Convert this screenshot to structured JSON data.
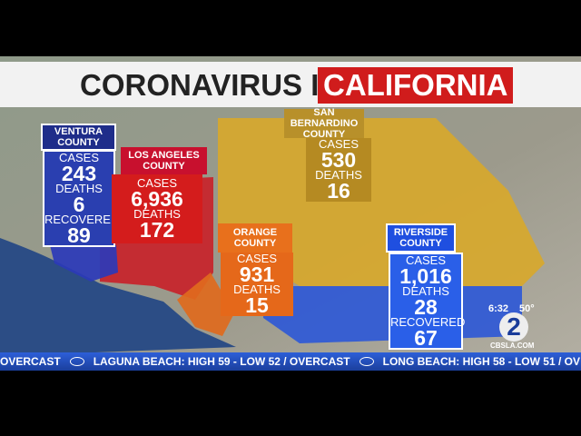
{
  "header": {
    "title": "CORONAVIRUS IN",
    "highlight": "CALIFORNIA"
  },
  "counties": [
    {
      "name": "VENTURA COUNTY",
      "stats": [
        {
          "label": "CASES",
          "value": "243"
        },
        {
          "label": "DEATHS",
          "value": "6"
        },
        {
          "label": "RECOVERED",
          "value": "89"
        }
      ]
    },
    {
      "name": "LOS ANGELES COUNTY",
      "stats": [
        {
          "label": "CASES",
          "value": "6,936"
        },
        {
          "label": "DEATHS",
          "value": "172"
        }
      ]
    },
    {
      "name": "SAN BERNARDINO COUNTY",
      "stats": [
        {
          "label": "CASES",
          "value": "530"
        },
        {
          "label": "DEATHS",
          "value": "16"
        }
      ]
    },
    {
      "name": "ORANGE COUNTY",
      "stats": [
        {
          "label": "CASES",
          "value": "931"
        },
        {
          "label": "DEATHS",
          "value": "15"
        }
      ]
    },
    {
      "name": "RIVERSIDE COUNTY",
      "stats": [
        {
          "label": "CASES",
          "value": "1,016"
        },
        {
          "label": "DEATHS",
          "value": "28"
        },
        {
          "label": "RECOVERED",
          "value": "67"
        }
      ]
    }
  ],
  "ticker": {
    "items": [
      "OVERCAST",
      "LAGUNA BEACH: HIGH 59 - LOW 52 / OVERCAST",
      "LONG BEACH: HIGH 58 - LOW 51 / OV"
    ]
  },
  "bug": {
    "time": "6:32",
    "temperature": "50°",
    "logo": "2",
    "site": "CBSLA.COM"
  }
}
